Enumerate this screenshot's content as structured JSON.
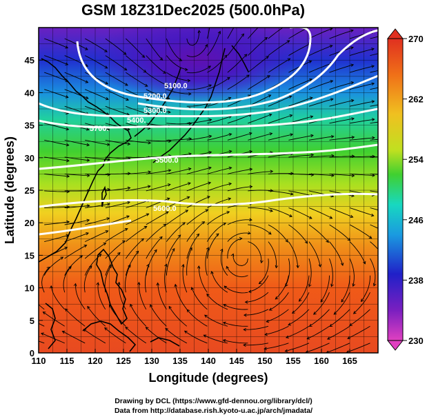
{
  "title": "GSM 18Z31Dec2025 (500.0hPa)",
  "xlabel": "Longitude (degrees)",
  "ylabel": "Latitude  (degrees)",
  "x_ticks": [
    "110",
    "115",
    "120",
    "125",
    "130",
    "135",
    "140",
    "145",
    "150",
    "155",
    "160",
    "165"
  ],
  "y_ticks": [
    "0",
    "5",
    "10",
    "15",
    "20",
    "25",
    "30",
    "35",
    "40",
    "45"
  ],
  "colorbar": {
    "labels": [
      "270",
      "262",
      "254",
      "246",
      "238",
      "230"
    ],
    "min": 230,
    "max": 270
  },
  "contour_labels": [
    "5100.0",
    "5200.0",
    "5300.0",
    "5400.",
    "5500.0",
    "5600.0",
    "5700."
  ],
  "credits": {
    "line1": "Drawing by DCL (https://www.gfd-dennou.org/library/dcl/)",
    "line2": "Data from http://database.rish.kyoto-u.ac.jp/arch/jmadata/"
  },
  "chart_data": {
    "type": "heatmap",
    "title": "GSM 18Z31Dec2025 (500.0hPa)",
    "xlabel": "Longitude (degrees)",
    "ylabel": "Latitude  (degrees)",
    "xlim": [
      110,
      170
    ],
    "ylim": [
      0,
      50
    ],
    "colorbar_range": [
      230,
      270
    ],
    "colormap": [
      "#e040c0",
      "#7a1fc0",
      "#2020c8",
      "#1a8ae0",
      "#18d8d0",
      "#20d040",
      "#a8e020",
      "#f0e020",
      "#f08010",
      "#e02010"
    ],
    "contour_levels": [
      5100,
      5200,
      5300,
      5400,
      5500,
      5600,
      5700
    ],
    "features": {
      "cold_low_center": [
        137,
        46
      ],
      "anticyclone_center": [
        146,
        15
      ]
    }
  }
}
